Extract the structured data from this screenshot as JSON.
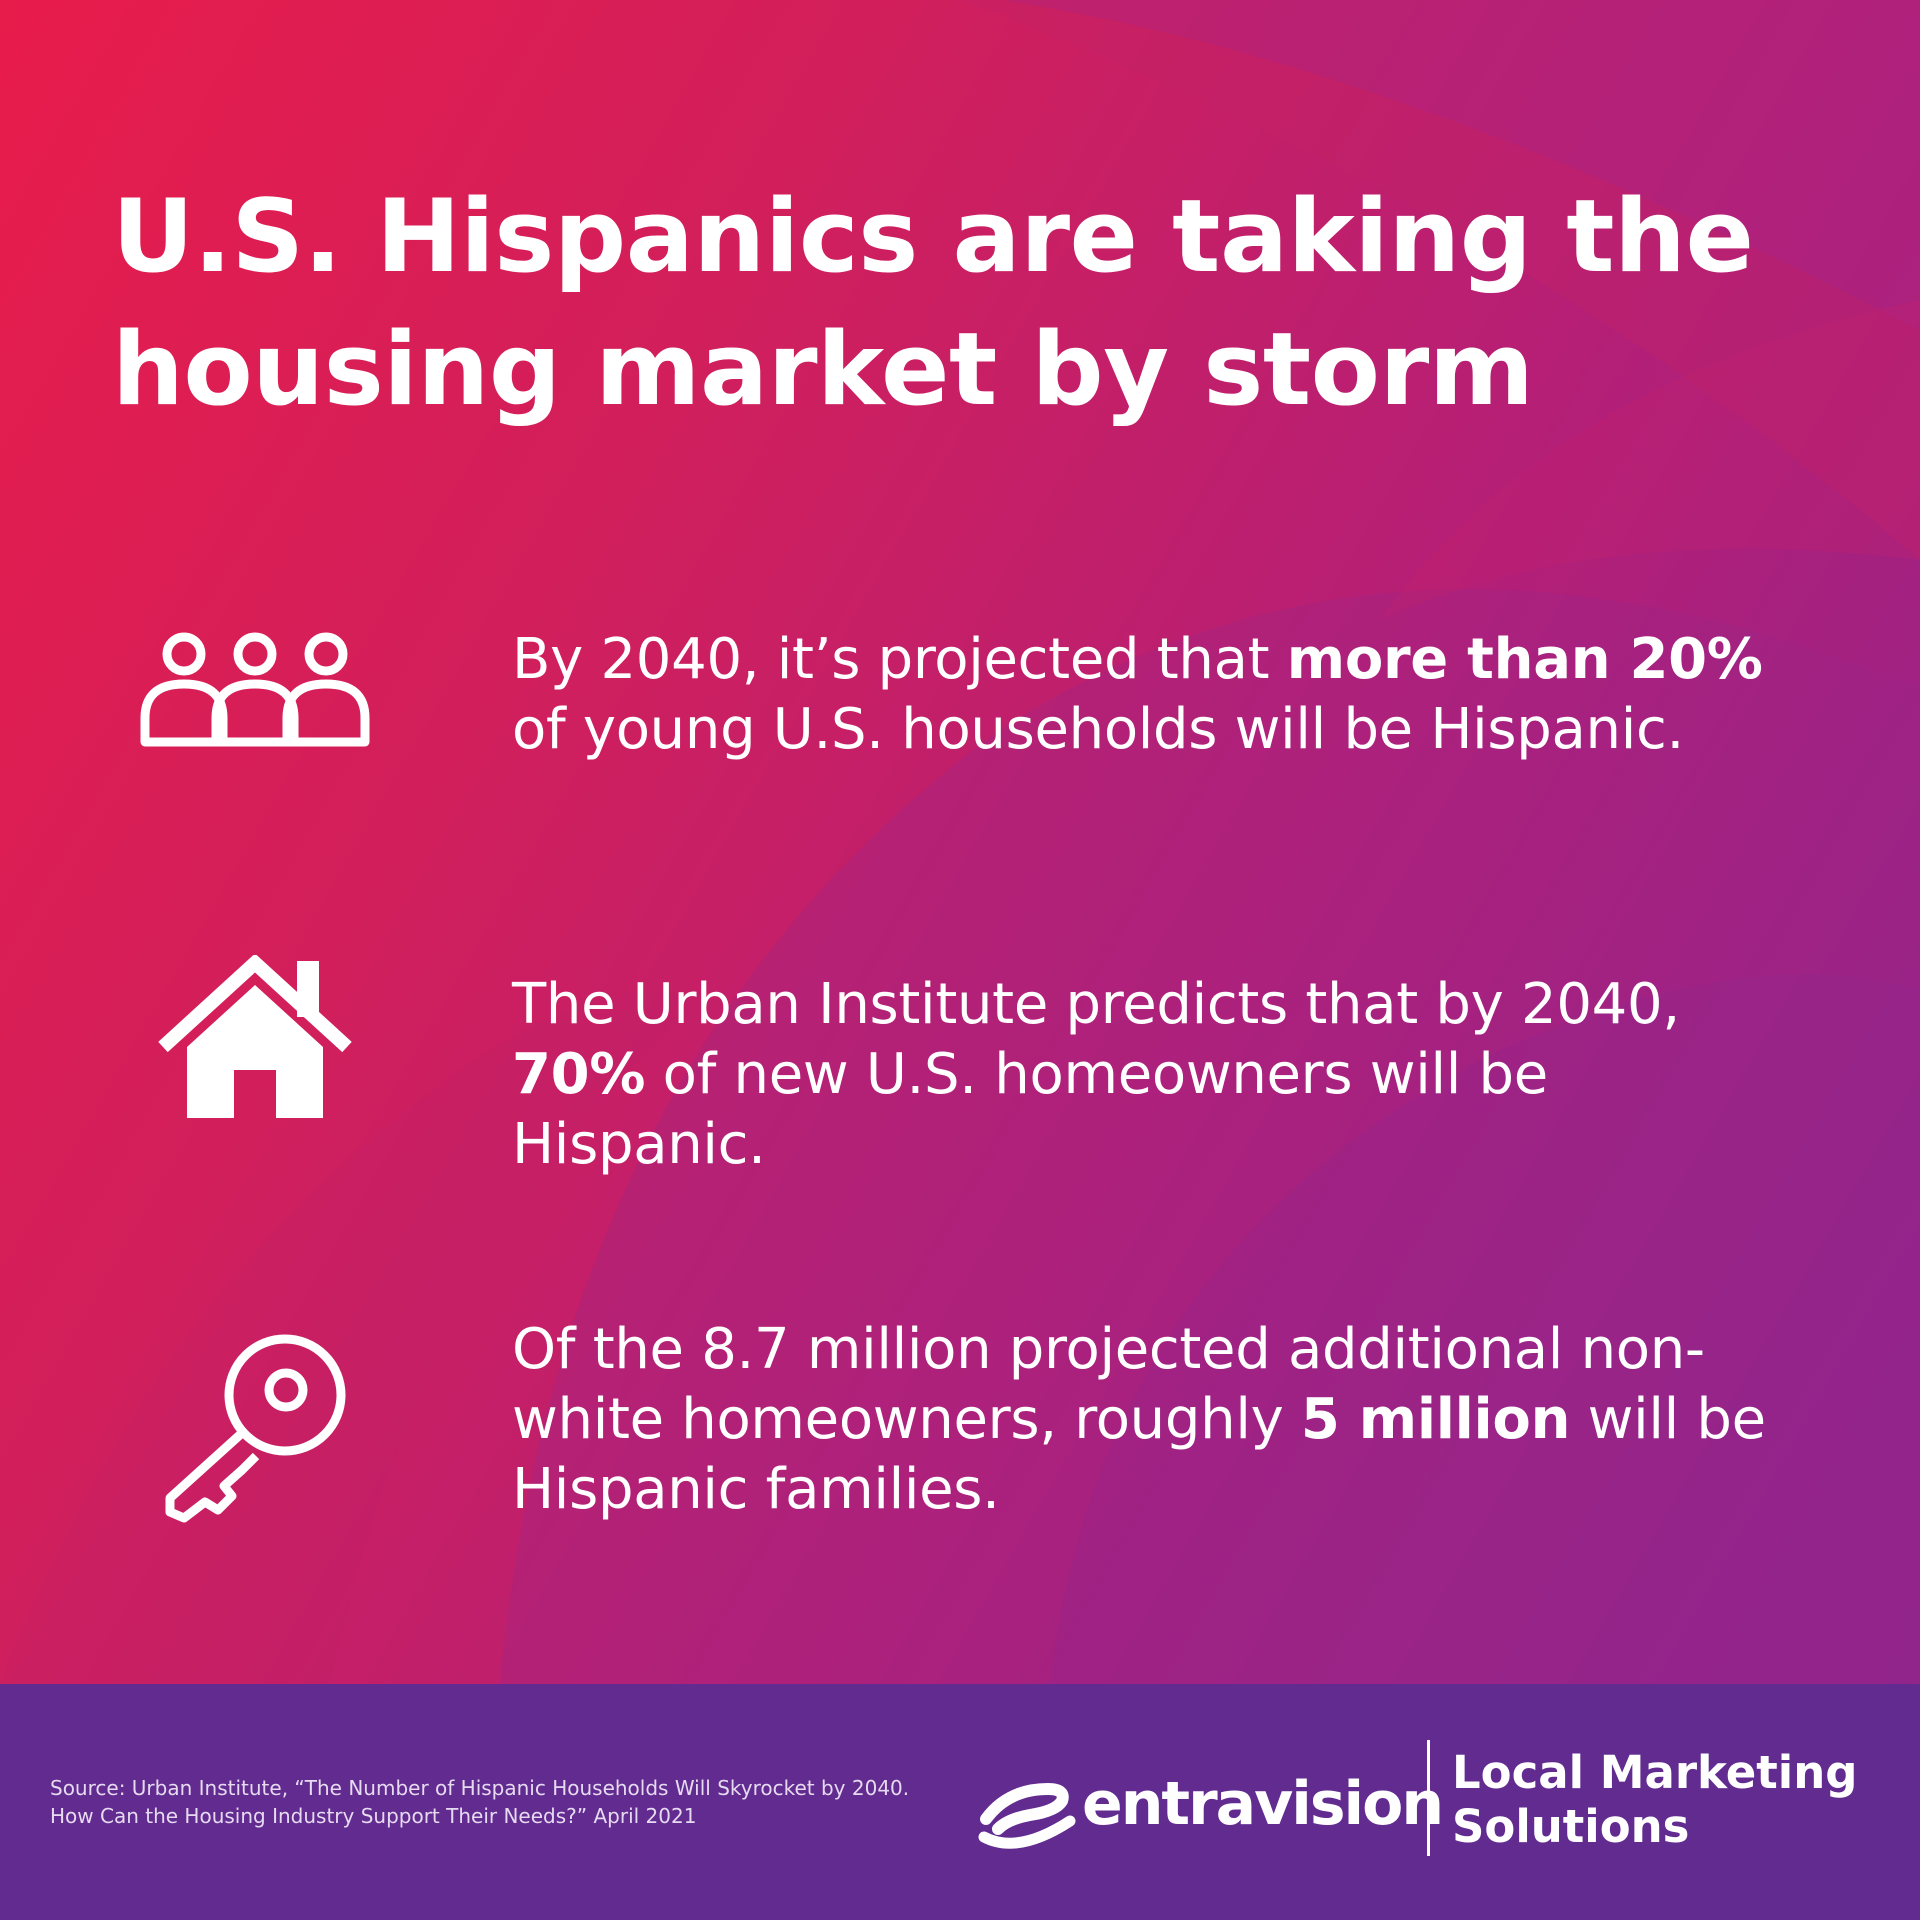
{
  "title": {
    "line1": "U.S. Hispanics are taking the",
    "line2": "housing market by storm"
  },
  "stats": [
    {
      "icon": "people-group-icon",
      "before": "By 2040, it’s projected that ",
      "highlight": "more than 20%",
      "after": " of young U.S. households will be Hispanic."
    },
    {
      "icon": "house-icon",
      "before": "The Urban Institute predicts that by 2040, ",
      "highlight": "70%",
      "after": " of new U.S. homeowners will be Hispanic."
    },
    {
      "icon": "key-icon",
      "before": "Of the 8.7 million projected additional non-white homeowners, roughly ",
      "highlight": "5 million",
      "after": " will be Hispanic families."
    }
  ],
  "footer": {
    "source_line1": "Source: Urban Institute, “The Number of Hispanic Households Will Skyrocket by 2040.",
    "source_line2": "How Can the Housing Industry Support Their Needs?” April 2021",
    "brand_name": "entravision",
    "brand_tag_line1": "Local Marketing",
    "brand_tag_line2": "Solutions"
  },
  "colors": {
    "gradient_start": "#e81c4b",
    "gradient_end": "#8a2490",
    "footer_bg": "#622b90",
    "text": "#ffffff"
  }
}
